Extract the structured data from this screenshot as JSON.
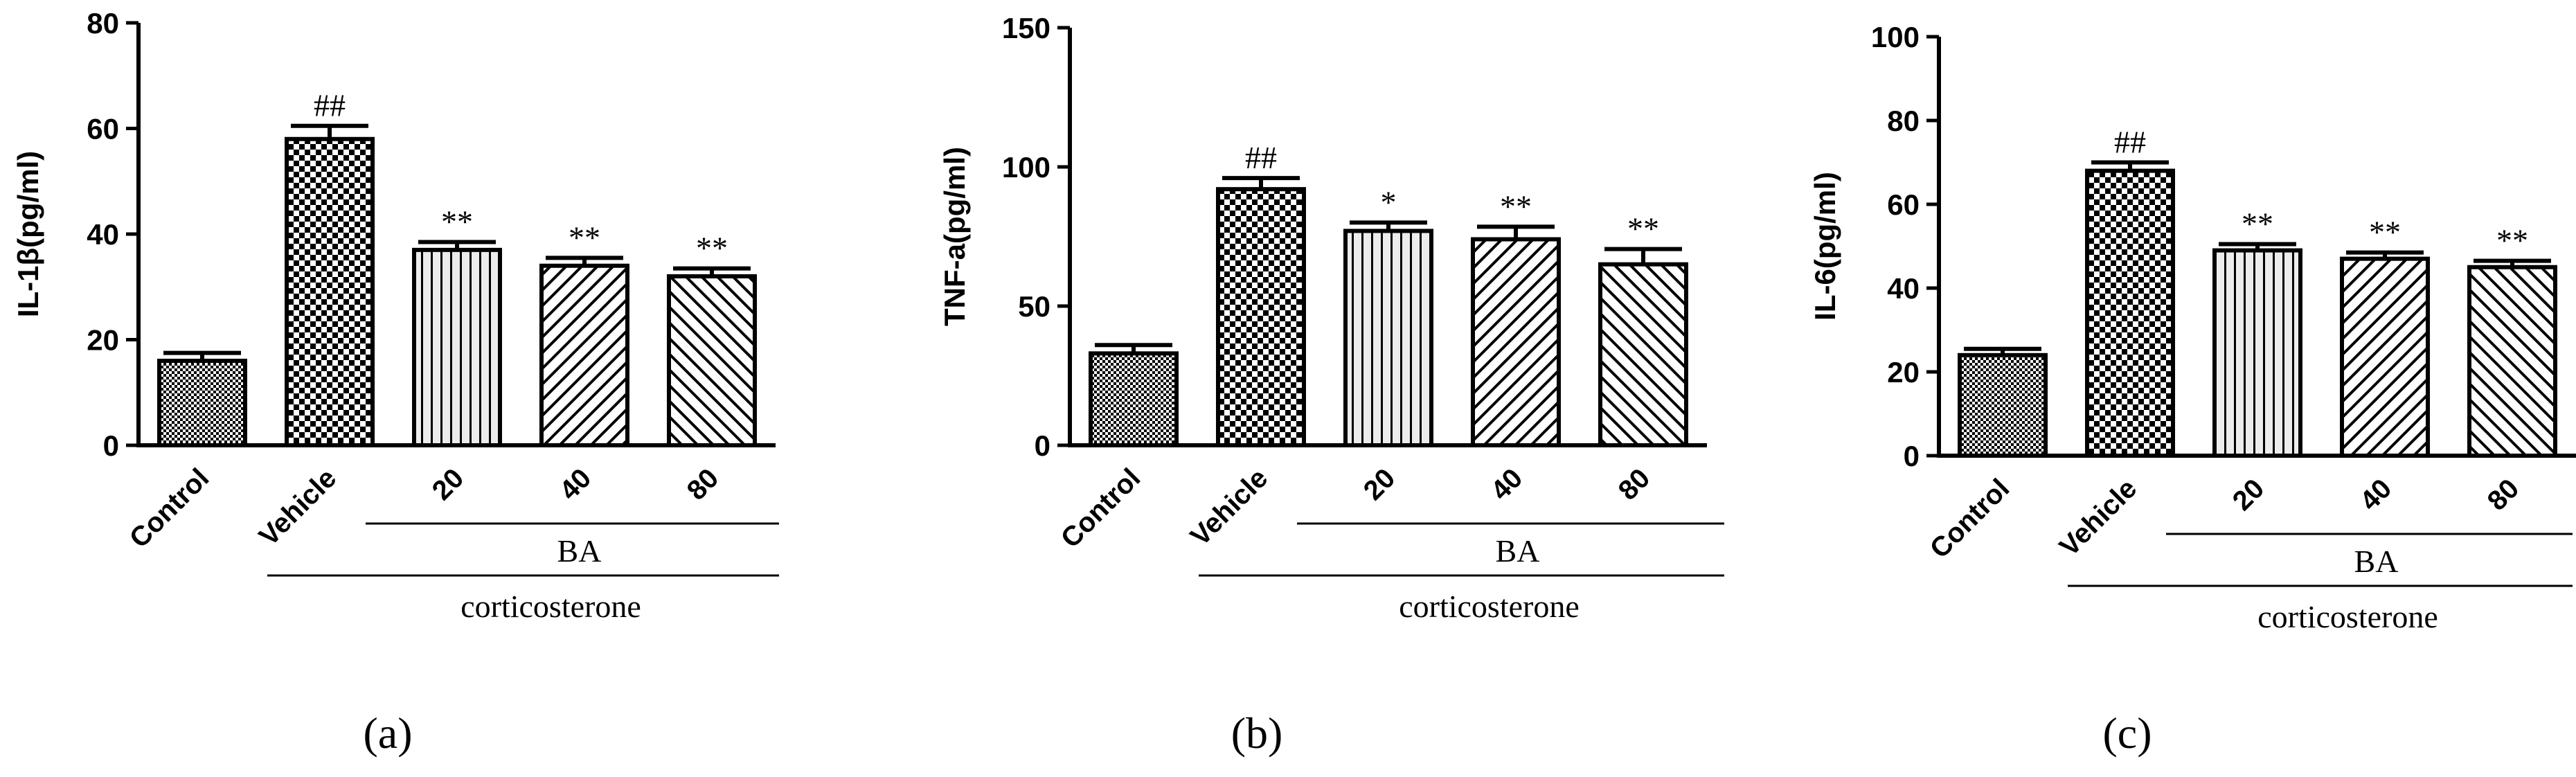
{
  "chart_data": [
    {
      "type": "bar",
      "panel": "(a)",
      "ylabel": "IL-1β(pg/ml)",
      "ylim": [
        0,
        80
      ],
      "yticks": [
        0,
        20,
        40,
        60,
        80
      ],
      "categories": [
        "Control",
        "Vehicle",
        "20",
        "40",
        "80"
      ],
      "values": [
        16,
        58,
        37,
        34,
        32
      ],
      "errors": [
        1.5,
        2.5,
        1.5,
        1.5,
        1.5
      ],
      "significance": [
        "",
        "##",
        "**",
        "**",
        "**"
      ],
      "patterns": [
        "dense",
        "checker",
        "vertical",
        "diag-right",
        "diag-left"
      ],
      "group_bracket_1": "BA",
      "group_bracket_2": "corticosterone"
    },
    {
      "type": "bar",
      "panel": "(b)",
      "ylabel": "TNF-a(pg/ml)",
      "ylim": [
        0,
        150
      ],
      "yticks": [
        0,
        50,
        100,
        150
      ],
      "categories": [
        "Control",
        "Vehicle",
        "20",
        "40",
        "80"
      ],
      "values": [
        33,
        92,
        77,
        74,
        65
      ],
      "errors": [
        3,
        4,
        3,
        4.5,
        5.5
      ],
      "significance": [
        "",
        "##",
        "*",
        "**",
        "**"
      ],
      "patterns": [
        "dense",
        "checker",
        "vertical",
        "diag-right",
        "diag-left"
      ],
      "group_bracket_1": "BA",
      "group_bracket_2": "corticosterone"
    },
    {
      "type": "bar",
      "panel": "(c)",
      "ylabel": "IL-6(pg/ml)",
      "ylim": [
        0,
        100
      ],
      "yticks": [
        0,
        20,
        40,
        60,
        80,
        100
      ],
      "categories": [
        "Control",
        "Vehicle",
        "20",
        "40",
        "80"
      ],
      "values": [
        24,
        68,
        49,
        47,
        45
      ],
      "errors": [
        1.5,
        2,
        1.5,
        1.5,
        1.5
      ],
      "significance": [
        "",
        "##",
        "**",
        "**",
        "**"
      ],
      "patterns": [
        "dense",
        "checker",
        "vertical",
        "diag-right",
        "diag-left"
      ],
      "group_bracket_1": "BA",
      "group_bracket_2": "corticosterone"
    }
  ]
}
